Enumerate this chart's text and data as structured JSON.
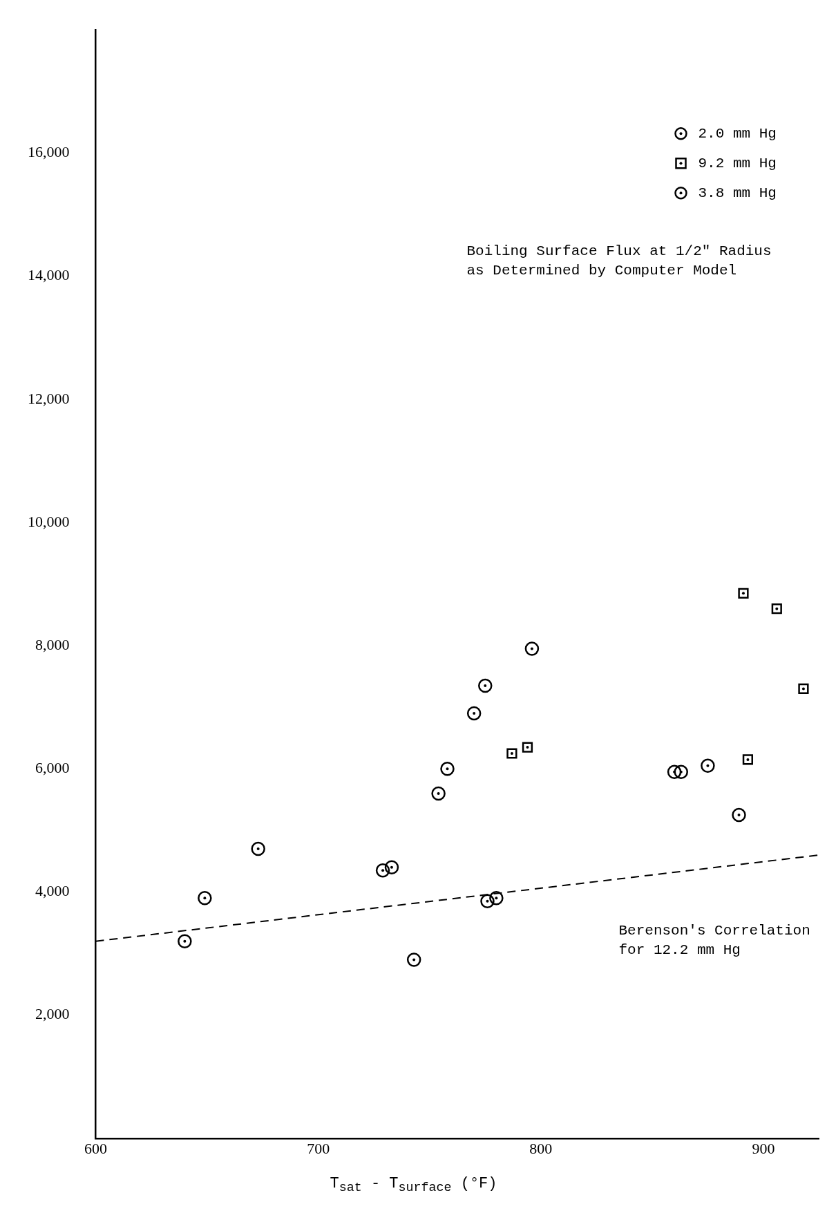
{
  "chart_data": {
    "type": "scatter",
    "xlabel": "T$_{sat}$ - T$_{surface}$ (°F)",
    "xlim": [
      600,
      925
    ],
    "xticks": [
      600,
      700,
      800,
      900
    ],
    "ylim": [
      0,
      18000
    ],
    "yticks": [
      {
        "value": 2000,
        "label": "2,000"
      },
      {
        "value": 4000,
        "label": "4,000"
      },
      {
        "value": 6000,
        "label": "6,000"
      },
      {
        "value": 8000,
        "label": "8,000"
      },
      {
        "value": 10000,
        "label": "10,000"
      },
      {
        "value": 12000,
        "label": "12,000"
      },
      {
        "value": 14000,
        "label": "14,000"
      },
      {
        "value": 16000,
        "label": "16,000"
      }
    ],
    "grid": false,
    "legend": "top right",
    "series": [
      {
        "name": "2.0 mm Hg",
        "color": "#000000",
        "marker": "circle",
        "x": [
          743,
          776,
          780,
          860,
          863,
          875,
          889
        ],
        "values": [
          2900,
          3850,
          3900,
          5950,
          5950,
          6050,
          5250
        ]
      },
      {
        "name": "9.2 mm Hg",
        "color": "#000000",
        "marker": "square",
        "x": [
          787,
          794,
          891,
          906,
          918,
          893
        ],
        "values": [
          6250,
          6350,
          8850,
          8600,
          7300,
          6150
        ]
      },
      {
        "name": "3.8 mm Hg",
        "color": "#000000",
        "marker": "circle",
        "x": [
          640,
          649,
          673,
          729,
          733,
          754,
          758,
          770,
          775,
          796
        ],
        "values": [
          3200,
          3900,
          4700,
          4350,
          4400,
          5600,
          6000,
          6900,
          7350,
          7950
        ]
      },
      {
        "type": "line",
        "color": "#000000",
        "line_style": "dashed",
        "marker": "none",
        "x": [
          600,
          925
        ],
        "values": [
          3200,
          4600
        ]
      }
    ],
    "annotations": [
      "Boiling Surface Flux at 1/2\" Radius\nas Determined by Computer Model",
      "Berenson's Correlation\nfor 12.2 mm Hg"
    ]
  }
}
